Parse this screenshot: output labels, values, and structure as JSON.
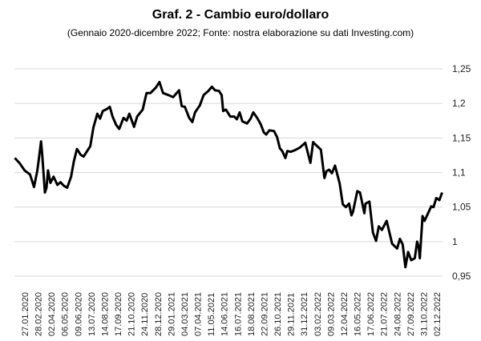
{
  "chart_data": {
    "type": "line",
    "title": "Graf. 2 - Cambio euro/dollaro",
    "subtitle": "(Gennaio 2020-dicembre 2022; Fonte: nostra elaborazione su dati Investing.com)",
    "ylim": [
      0.95,
      1.25
    ],
    "y_ticks": [
      "1,25",
      "1,2",
      "1,15",
      "1,1",
      "1,05",
      "1",
      "0,95"
    ],
    "y_tick_values": [
      1.25,
      1.2,
      1.15,
      1.1,
      1.05,
      1.0,
      0.95
    ],
    "y_axis_position": "right",
    "grid": true,
    "x_tick_labels": [
      "27.01.2020",
      "28.02.2020",
      "02.04.2020",
      "06.05.2020",
      "09.06.2020",
      "13.07.2020",
      "14.08.2020",
      "17.09.2020",
      "21.10.2020",
      "24.11.2020",
      "28.12.2020",
      "29.01.2021",
      "04.03.2021",
      "07.04.2021",
      "11.05.2021",
      "14.06.2021",
      "16.07.2021",
      "18.08.2021",
      "22.09.2021",
      "26.10.2021",
      "29.11.2021",
      "31.12.2021",
      "03.02.2022",
      "09.03.2022",
      "12.04.2022",
      "16.05.2022",
      "17.06.2022",
      "21.07.2022",
      "24.08.2022",
      "27.09.2022",
      "31.10.2022",
      "02.12.2022"
    ],
    "series": [
      {
        "color": "#000000",
        "x": [
          "2020-01-02",
          "2020-01-15",
          "2020-01-27",
          "2020-02-10",
          "2020-02-20",
          "2020-02-28",
          "2020-03-03",
          "2020-03-09",
          "2020-03-12",
          "2020-03-19",
          "2020-03-23",
          "2020-03-27",
          "2020-04-02",
          "2020-04-10",
          "2020-04-20",
          "2020-04-28",
          "2020-05-06",
          "2020-05-15",
          "2020-05-25",
          "2020-06-01",
          "2020-06-09",
          "2020-06-18",
          "2020-06-26",
          "2020-07-06",
          "2020-07-13",
          "2020-07-21",
          "2020-07-31",
          "2020-08-07",
          "2020-08-14",
          "2020-08-25",
          "2020-09-01",
          "2020-09-08",
          "2020-09-17",
          "2020-09-25",
          "2020-10-06",
          "2020-10-14",
          "2020-10-21",
          "2020-11-02",
          "2020-11-10",
          "2020-11-24",
          "2020-12-04",
          "2020-12-14",
          "2020-12-28",
          "2021-01-06",
          "2021-01-15",
          "2021-01-29",
          "2021-02-10",
          "2021-02-25",
          "2021-03-04",
          "2021-03-12",
          "2021-03-23",
          "2021-03-31",
          "2021-04-07",
          "2021-04-19",
          "2021-04-29",
          "2021-05-11",
          "2021-05-20",
          "2021-05-28",
          "2021-06-07",
          "2021-06-14",
          "2021-06-18",
          "2021-06-25",
          "2021-07-06",
          "2021-07-16",
          "2021-07-23",
          "2021-07-30",
          "2021-08-06",
          "2021-08-18",
          "2021-08-27",
          "2021-09-03",
          "2021-09-13",
          "2021-09-22",
          "2021-09-30",
          "2021-10-06",
          "2021-10-14",
          "2021-10-26",
          "2021-11-03",
          "2021-11-10",
          "2021-11-16",
          "2021-11-24",
          "2021-11-29",
          "2021-12-08",
          "2021-12-17",
          "2021-12-31",
          "2022-01-14",
          "2022-01-27",
          "2022-02-03",
          "2022-02-10",
          "2022-02-23",
          "2022-03-04",
          "2022-03-09",
          "2022-03-16",
          "2022-03-23",
          "2022-03-31",
          "2022-04-12",
          "2022-04-20",
          "2022-04-28",
          "2022-05-06",
          "2022-05-12",
          "2022-05-16",
          "2022-05-27",
          "2022-06-03",
          "2022-06-14",
          "2022-06-17",
          "2022-06-27",
          "2022-07-06",
          "2022-07-14",
          "2022-07-21",
          "2022-07-29",
          "2022-08-10",
          "2022-08-24",
          "2022-09-06",
          "2022-09-13",
          "2022-09-20",
          "2022-09-27",
          "2022-10-04",
          "2022-10-12",
          "2022-10-21",
          "2022-10-27",
          "2022-10-31",
          "2022-11-03",
          "2022-11-10",
          "2022-11-15",
          "2022-11-24",
          "2022-12-02",
          "2022-12-08",
          "2022-12-15",
          "2022-12-23",
          "2022-12-30"
        ],
        "y": [
          1.121,
          1.113,
          1.103,
          1.097,
          1.079,
          1.101,
          1.117,
          1.145,
          1.127,
          1.071,
          1.078,
          1.103,
          1.085,
          1.094,
          1.082,
          1.086,
          1.081,
          1.078,
          1.094,
          1.116,
          1.134,
          1.126,
          1.123,
          1.132,
          1.138,
          1.165,
          1.185,
          1.178,
          1.189,
          1.192,
          1.195,
          1.181,
          1.169,
          1.163,
          1.179,
          1.175,
          1.185,
          1.166,
          1.181,
          1.191,
          1.215,
          1.215,
          1.223,
          1.231,
          1.215,
          1.212,
          1.209,
          1.219,
          1.196,
          1.195,
          1.179,
          1.173,
          1.187,
          1.197,
          1.212,
          1.218,
          1.224,
          1.219,
          1.218,
          1.212,
          1.189,
          1.191,
          1.181,
          1.181,
          1.177,
          1.187,
          1.174,
          1.171,
          1.178,
          1.187,
          1.179,
          1.17,
          1.158,
          1.155,
          1.161,
          1.16,
          1.151,
          1.135,
          1.131,
          1.121,
          1.131,
          1.13,
          1.132,
          1.136,
          1.143,
          1.114,
          1.144,
          1.14,
          1.133,
          1.092,
          1.102,
          1.104,
          1.099,
          1.11,
          1.084,
          1.054,
          1.05,
          1.055,
          1.038,
          1.043,
          1.073,
          1.071,
          1.041,
          1.055,
          1.058,
          1.013,
          1.001,
          1.022,
          1.017,
          1.03,
          0.997,
          0.99,
          1.004,
          0.996,
          0.963,
          0.985,
          0.973,
          0.976,
          1.0,
          0.992,
          0.976,
          1.037,
          1.03,
          1.041,
          1.051,
          1.05,
          1.063,
          1.06,
          1.071
        ]
      }
    ]
  }
}
